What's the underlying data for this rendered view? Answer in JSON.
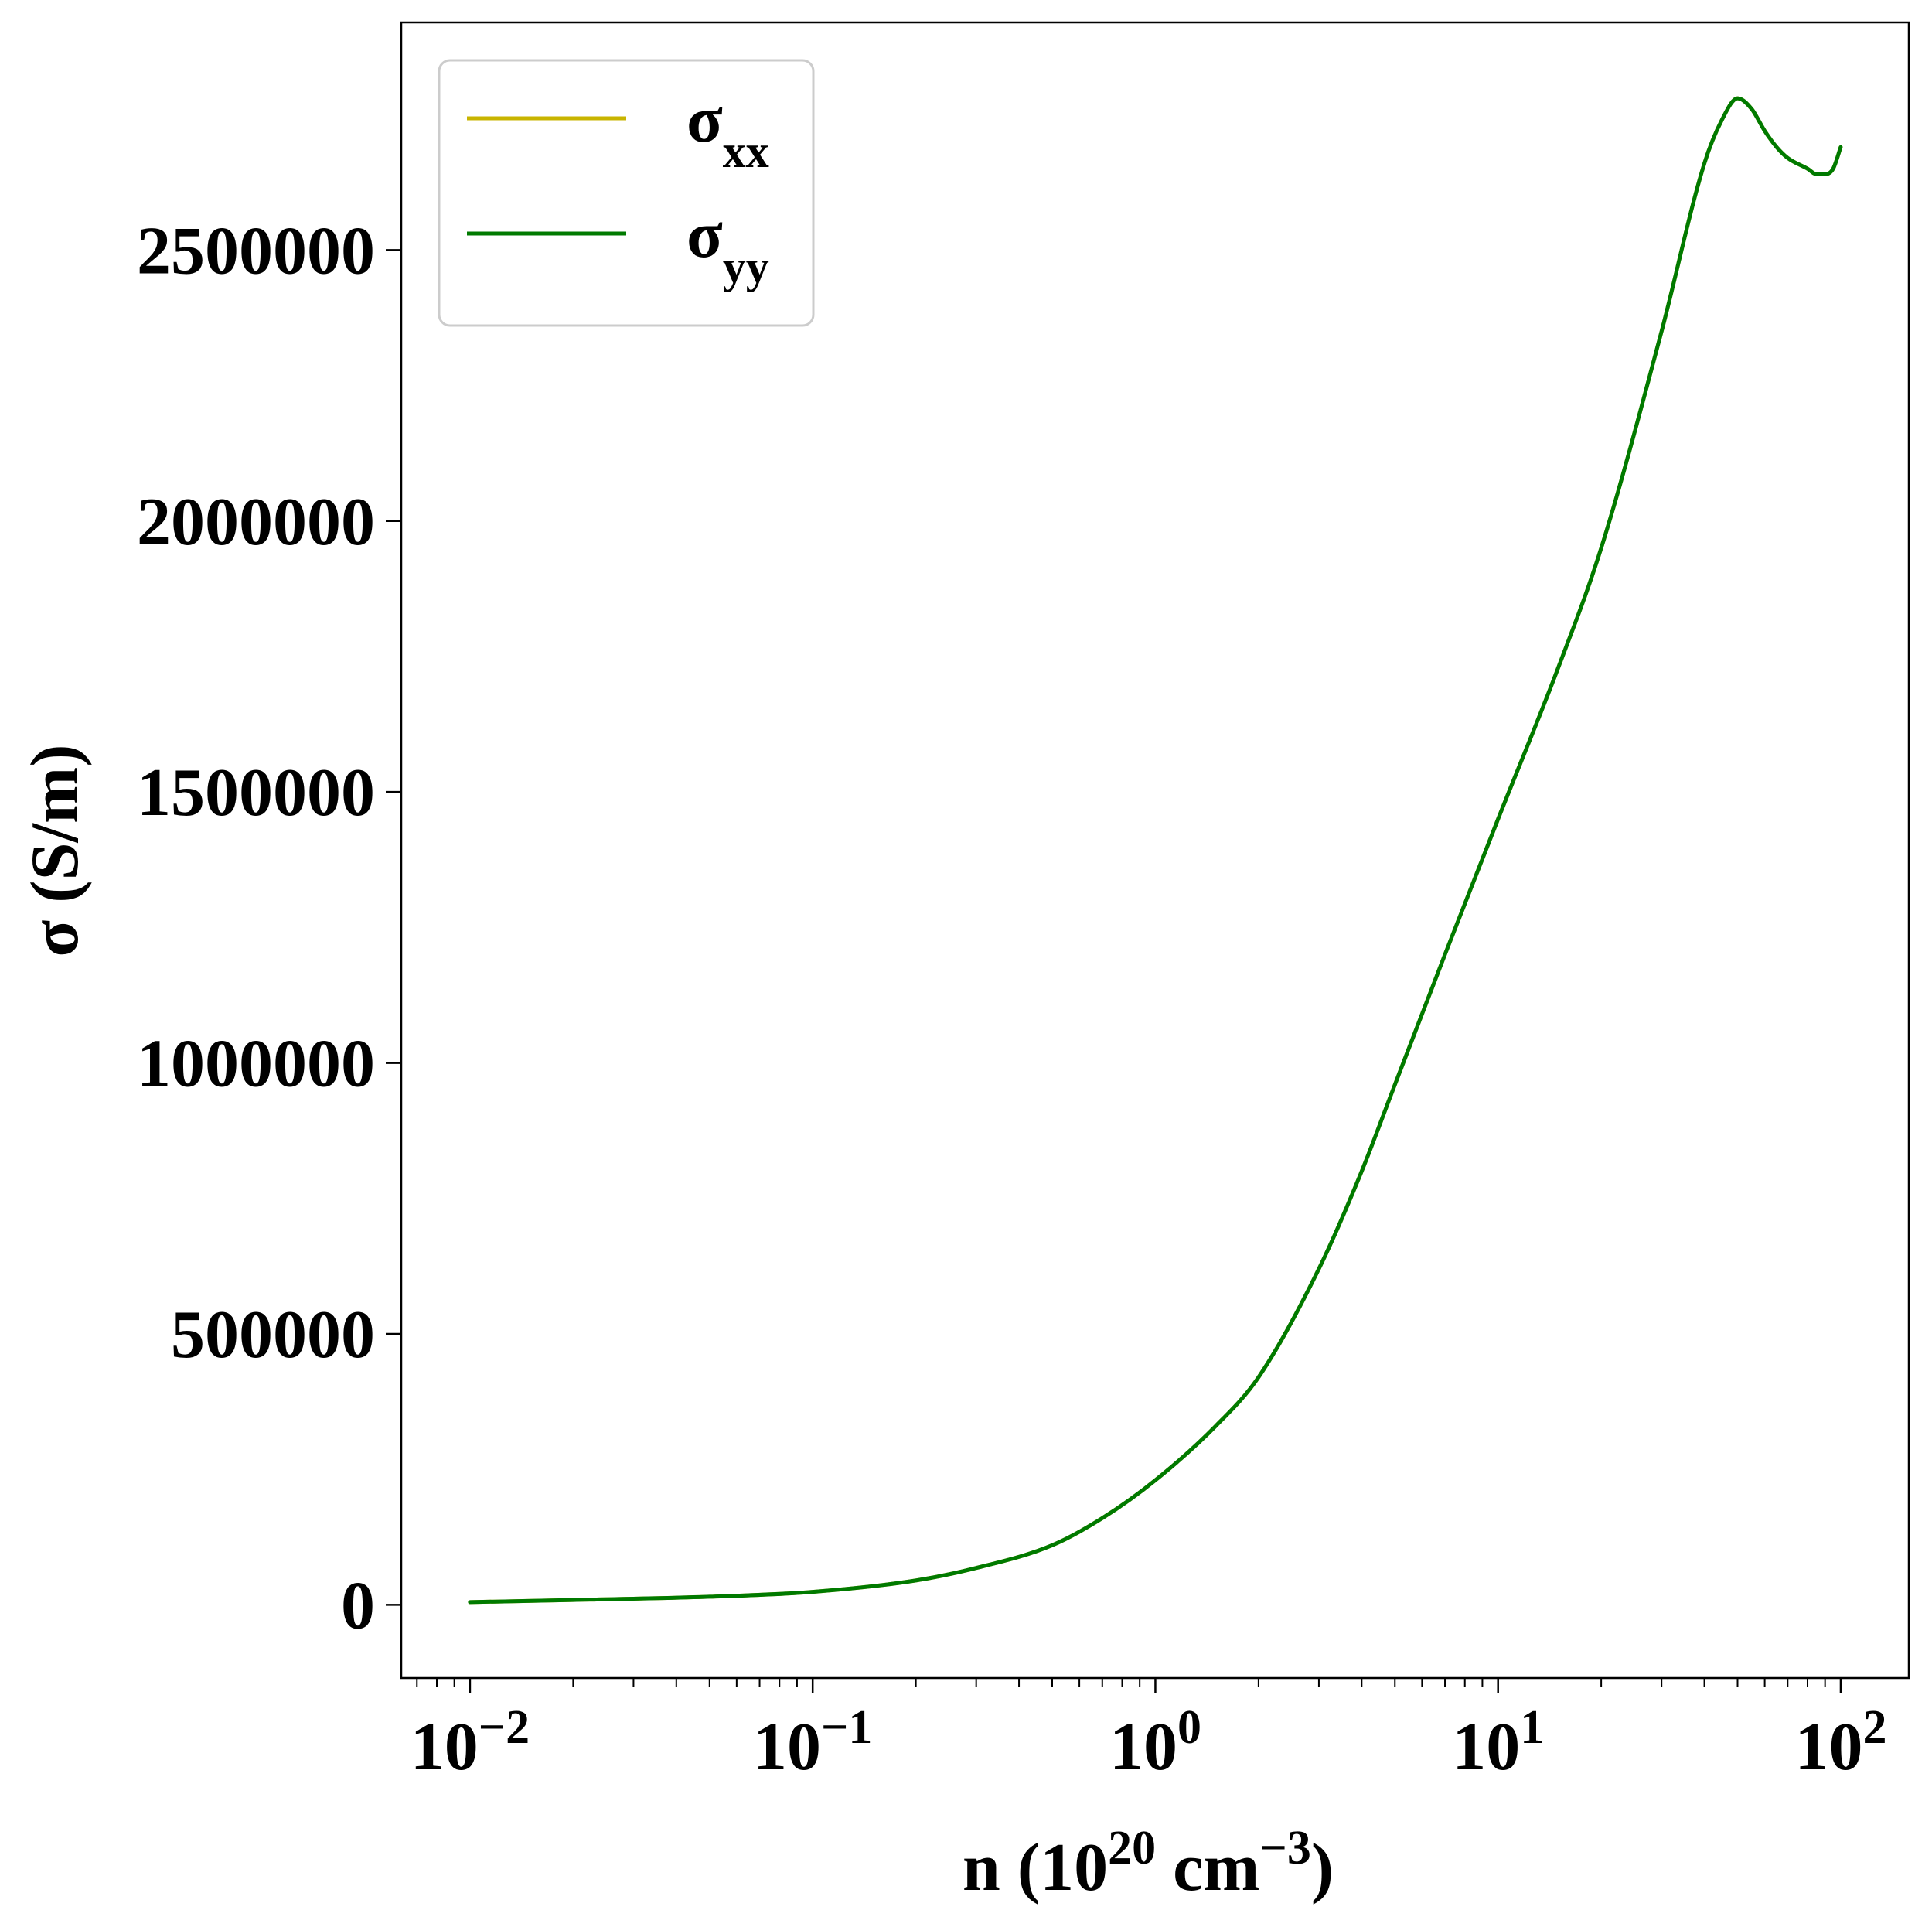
{
  "chart_data": {
    "type": "line",
    "xscale": "log",
    "xlabel": {
      "base": "n (10",
      "exp1": "20",
      "mid": " cm",
      "exp2": "−3",
      "end": ")"
    },
    "ylabel": "σ (S/m)",
    "xlim": [
      0.0063,
      158
    ],
    "ylim": [
      -135000,
      2920000
    ],
    "x_ticks": [
      {
        "base": "10",
        "exp": "−2",
        "value": 0.01
      },
      {
        "base": "10",
        "exp": "−1",
        "value": 0.1
      },
      {
        "base": "10",
        "exp": "0",
        "value": 1
      },
      {
        "base": "10",
        "exp": "1",
        "value": 10
      },
      {
        "base": "10",
        "exp": "2",
        "value": 100
      }
    ],
    "y_ticks": [
      {
        "label": "0",
        "value": 0
      },
      {
        "label": "500000",
        "value": 500000
      },
      {
        "label": "1000000",
        "value": 1000000
      },
      {
        "label": "1500000",
        "value": 1500000
      },
      {
        "label": "2000000",
        "value": 2000000
      },
      {
        "label": "2500000",
        "value": 2500000
      }
    ],
    "legend": {
      "placement": "top-left",
      "entries": [
        {
          "symbol": "σ",
          "sub": "xx",
          "color": "#c8b400"
        },
        {
          "symbol": "σ",
          "sub": "yy",
          "color": "#007a00"
        }
      ]
    },
    "grid": false,
    "series": [
      {
        "name": "σxx",
        "color": "#c8b400",
        "x": [
          0.01,
          0.02,
          0.05,
          0.1,
          0.2,
          0.3,
          0.5,
          0.7,
          1,
          1.5,
          2,
          3,
          4,
          5,
          7,
          10,
          15,
          20,
          30,
          40,
          45,
          50,
          55,
          60,
          65,
          70,
          80,
          85,
          90,
          95,
          100
        ],
        "y": [
          5000,
          9000,
          15000,
          24000,
          45000,
          68000,
          110000,
          160000,
          230000,
          330000,
          420000,
          620000,
          800000,
          960000,
          1200000,
          1450000,
          1730000,
          1950000,
          2350000,
          2660000,
          2740000,
          2780000,
          2760000,
          2720000,
          2690000,
          2670000,
          2650000,
          2640000,
          2640000,
          2650000,
          2690000
        ]
      },
      {
        "name": "σyy",
        "color": "#007a00",
        "x": [
          0.01,
          0.02,
          0.05,
          0.1,
          0.2,
          0.3,
          0.5,
          0.7,
          1,
          1.5,
          2,
          3,
          4,
          5,
          7,
          10,
          15,
          20,
          30,
          40,
          45,
          50,
          55,
          60,
          65,
          70,
          80,
          85,
          90,
          95,
          100
        ],
        "y": [
          5000,
          9000,
          15000,
          24000,
          45000,
          68000,
          110000,
          160000,
          230000,
          330000,
          420000,
          620000,
          800000,
          960000,
          1200000,
          1450000,
          1730000,
          1950000,
          2350000,
          2660000,
          2740000,
          2780000,
          2760000,
          2720000,
          2690000,
          2670000,
          2650000,
          2640000,
          2640000,
          2650000,
          2690000
        ]
      }
    ]
  }
}
